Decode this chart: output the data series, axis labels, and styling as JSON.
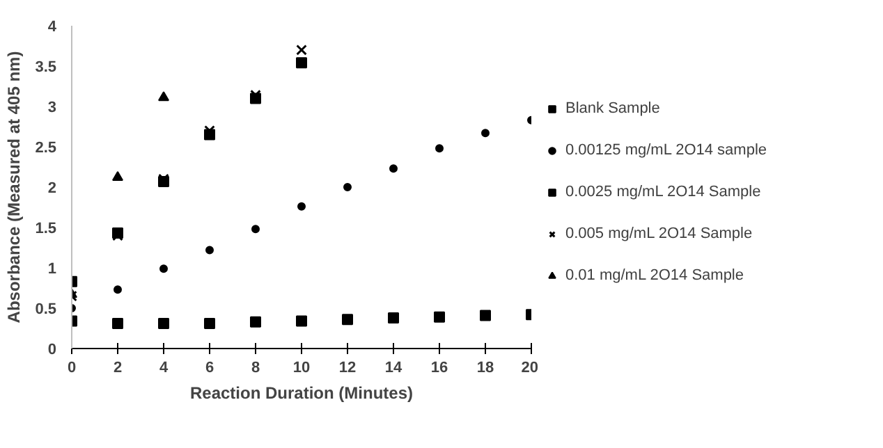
{
  "chart_data": {
    "type": "scatter",
    "xlabel": "Reaction Duration (Minutes)",
    "ylabel": "Absorbance (Measured at 405 nm)",
    "xlim": [
      0,
      20
    ],
    "xticks": [
      0,
      2,
      4,
      6,
      8,
      10,
      12,
      14,
      16,
      18,
      20
    ],
    "ylim": [
      0,
      4
    ],
    "yticks": [
      0,
      0.5,
      1,
      1.5,
      2,
      2.5,
      3,
      3.5,
      4
    ],
    "grid": false,
    "legend": "right",
    "series": [
      {
        "name": "Blank Sample",
        "color": "#000000",
        "marker": "square",
        "x": [
          0,
          2,
          4,
          6,
          8,
          10,
          12,
          14,
          16,
          18,
          20
        ],
        "values": [
          0.34,
          0.31,
          0.31,
          0.31,
          0.33,
          0.34,
          0.36,
          0.38,
          0.39,
          0.41,
          0.42
        ]
      },
      {
        "name": "0.00125 mg/mL 2O14 sample",
        "color": "#000000",
        "marker": "circle",
        "x": [
          0,
          2,
          4,
          6,
          8,
          10,
          12,
          14,
          16,
          18,
          20
        ],
        "values": [
          0.5,
          0.73,
          0.99,
          1.22,
          1.48,
          1.76,
          2.0,
          2.23,
          2.48,
          2.67,
          2.83
        ]
      },
      {
        "name": "0.0025 mg/mL 2O14 Sample",
        "color": "#000000",
        "marker": "square",
        "x": [
          0,
          2,
          4,
          6,
          8,
          10
        ],
        "values": [
          0.83,
          1.43,
          2.07,
          2.65,
          3.1,
          3.54
        ]
      },
      {
        "name": "0.005 mg/mL 2O14 Sample",
        "color": "#000000",
        "marker": "cross",
        "x": [
          0,
          2,
          4,
          6,
          8,
          10
        ],
        "values": [
          0.65,
          1.4,
          2.1,
          2.7,
          3.14,
          3.7
        ]
      },
      {
        "name": "0.01 mg/mL 2O14 Sample",
        "color": "#000000",
        "marker": "triangle",
        "x": [
          0,
          2,
          4
        ],
        "values": [
          0.67,
          2.12,
          3.11
        ]
      }
    ]
  }
}
